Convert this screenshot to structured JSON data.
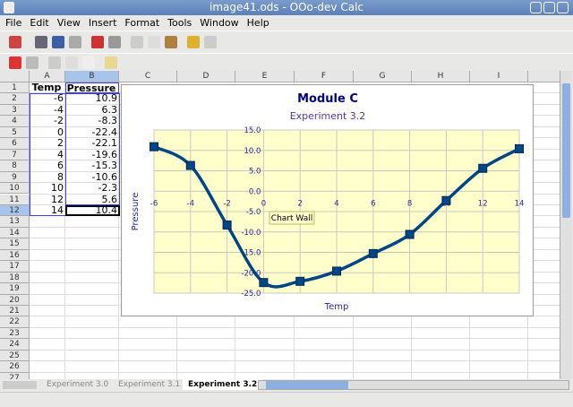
{
  "window": {
    "title": "image41.ods - OOo-dev Calc"
  },
  "menu": [
    "File",
    "Edit",
    "View",
    "Insert",
    "Format",
    "Tools",
    "Window",
    "Help"
  ],
  "columns": [
    "A",
    "B",
    "C",
    "D",
    "E",
    "F",
    "G",
    "H",
    "I"
  ],
  "rows": 27,
  "selected_cell": "B12",
  "table": {
    "headers": [
      "Temp",
      "Pressure"
    ],
    "rows": [
      [
        "-6",
        "10.9"
      ],
      [
        "-4",
        "6.3"
      ],
      [
        "-2",
        "-8.3"
      ],
      [
        "0",
        "-22.4"
      ],
      [
        "2",
        "-22.1"
      ],
      [
        "4",
        "-19.6"
      ],
      [
        "6",
        "-15.3"
      ],
      [
        "8",
        "-10.6"
      ],
      [
        "10",
        "-2.3"
      ],
      [
        "12",
        "5.6"
      ],
      [
        "14",
        "10.4"
      ]
    ]
  },
  "chart_data": {
    "type": "line",
    "title": "Module C",
    "subtitle": "Experiment 3.2",
    "xlabel": "Temp",
    "ylabel": "Pressure",
    "x": [
      -6,
      -4,
      -2,
      0,
      2,
      4,
      6,
      8,
      10,
      12,
      14
    ],
    "values": [
      10.9,
      6.3,
      -8.3,
      -22.4,
      -22.1,
      -19.6,
      -15.3,
      -10.6,
      -2.3,
      5.6,
      10.4
    ],
    "xlim": [
      -6,
      14
    ],
    "ylim": [
      -25,
      15
    ],
    "xticks": [
      "-6",
      "-4",
      "-2",
      "0",
      "2",
      "4",
      "6",
      "8",
      "10",
      "12",
      "14"
    ],
    "yticks": [
      "15.0",
      "10.0",
      "5.0",
      "0.0",
      "-5.0",
      "-10.0",
      "-15.0",
      "-20.0",
      "-25.0"
    ],
    "grid": true,
    "smooth": true,
    "marker": "square",
    "colors": {
      "line": "#004586",
      "wall": "#ffffcc",
      "text": "#2a2a9a"
    },
    "tooltip": "Chart Wall"
  },
  "sheet_tabs": [
    "Experiment 3.0",
    "Experiment 3.1",
    "Experiment 3.2"
  ],
  "active_tab": 2
}
